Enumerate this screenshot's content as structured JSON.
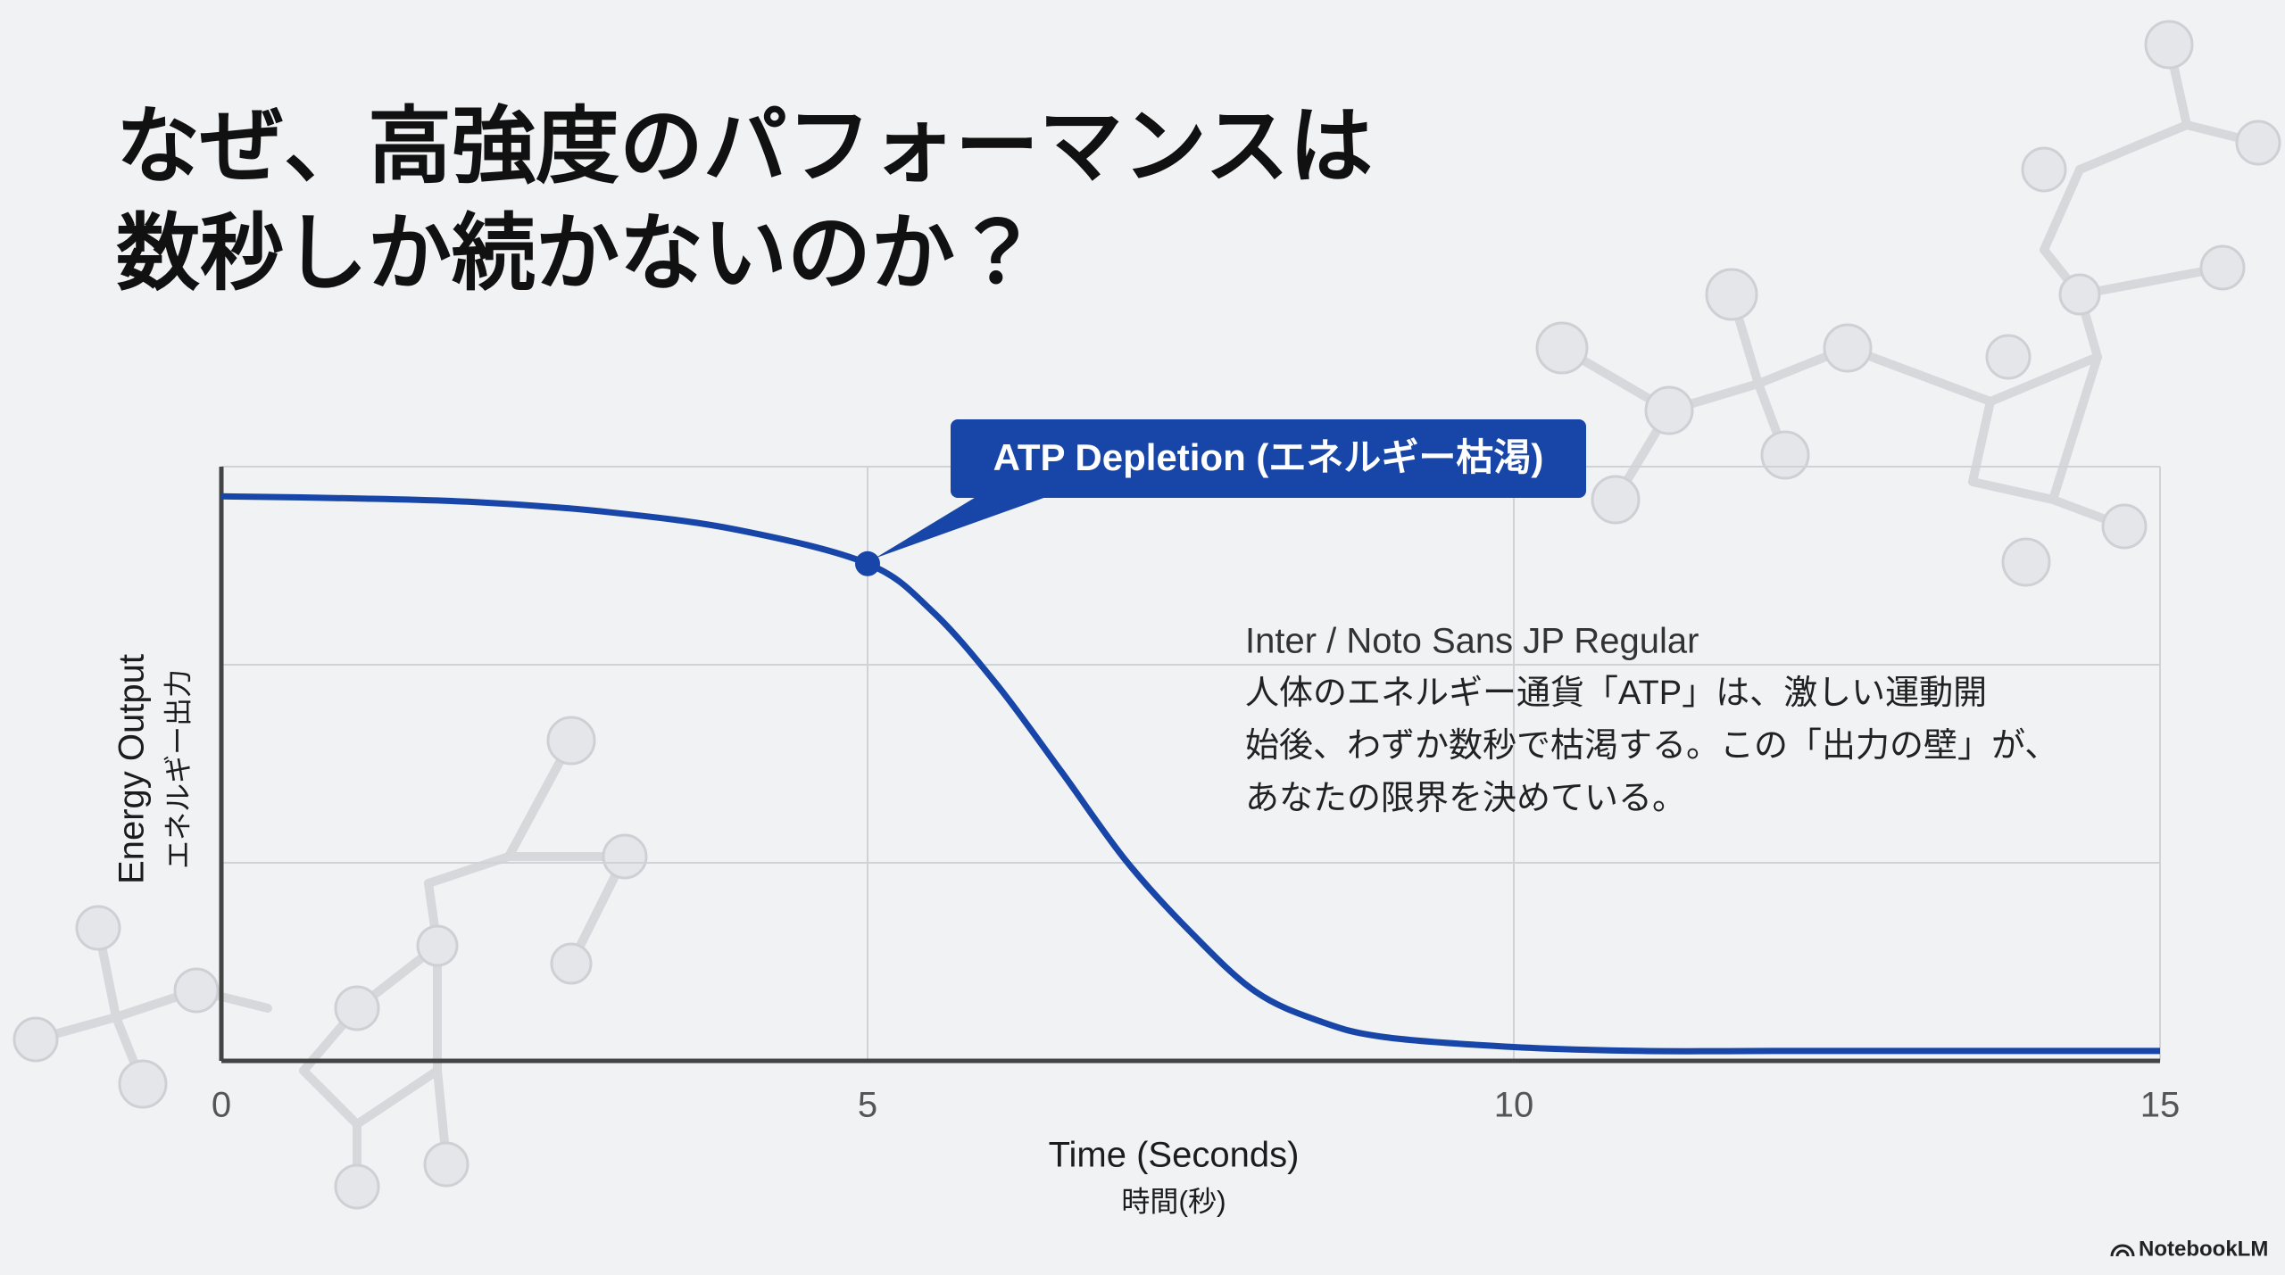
{
  "slide": {
    "title_lines": [
      "なぜ、高強度のパフォーマンスは",
      "数秒しか続かないのか？"
    ]
  },
  "chart_data": {
    "type": "line",
    "xlabel": "Time (Seconds)",
    "xlabel_sub": "時間(秒)",
    "ylabel": "Energy Output",
    "ylabel_sub": "エネルギー出力",
    "xlim": [
      0,
      15
    ],
    "xticks": [
      0,
      5,
      10,
      15
    ],
    "ylim": [
      0,
      3
    ],
    "grid": true,
    "series": [
      {
        "color": "#1846a8",
        "x": [
          0,
          1,
          2,
          3,
          4,
          5,
          5.5,
          6,
          6.5,
          7,
          7.5,
          8,
          8.5,
          9,
          10,
          11,
          12,
          13,
          14,
          15
        ],
        "values": [
          2.85,
          2.84,
          2.82,
          2.77,
          2.68,
          2.51,
          2.27,
          1.9,
          1.46,
          1.01,
          0.65,
          0.35,
          0.2,
          0.12,
          0.07,
          0.05,
          0.05,
          0.05,
          0.05,
          0.05
        ]
      }
    ],
    "annotations": [
      {
        "text": "ATP Depletion (エネルギー枯渇)",
        "x": 5,
        "y": 2.51,
        "color": "#1846a8"
      }
    ],
    "note": {
      "font": "Inter / Noto Sans JP Regular",
      "lines": [
        "人体のエネルギー通貨「ATP」は、激しい運動開",
        "始後、わずか数秒で枯渇する。この「出力の壁」が、",
        "あなたの限界を決めている。"
      ]
    }
  },
  "brand": "NotebookLM"
}
